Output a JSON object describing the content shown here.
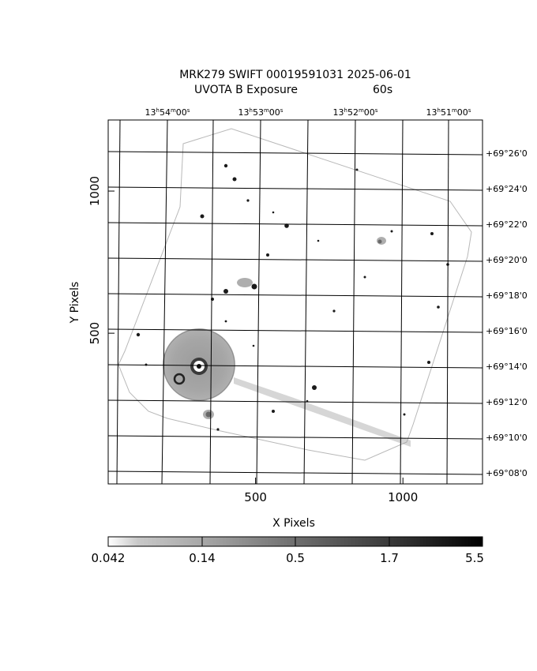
{
  "title": {
    "line1": "MRK279 SWIFT 00019591031 2025-06-01",
    "line2_left": "UVOTA B Exposure",
    "line2_right": "60s"
  },
  "axes": {
    "xlabel": "X Pixels",
    "ylabel": "Y Pixels",
    "x_ticks": [
      {
        "value": 500,
        "label": "500"
      },
      {
        "value": 1000,
        "label": "1000"
      }
    ],
    "y_ticks": [
      {
        "value": 500,
        "label": "500"
      },
      {
        "value": 1000,
        "label": "1000"
      }
    ],
    "xlim": [
      0,
      1270
    ],
    "ylim": [
      -30,
      1250
    ],
    "ra_ticks": [
      {
        "h": "13",
        "m": "54",
        "s": "00"
      },
      {
        "h": "13",
        "m": "53",
        "s": "00"
      },
      {
        "h": "13",
        "m": "52",
        "s": "00"
      },
      {
        "h": "13",
        "m": "51",
        "s": "00"
      }
    ],
    "dec_ticks": [
      "+69°26'0",
      "+69°24'0",
      "+69°22'0",
      "+69°20'0",
      "+69°18'0",
      "+69°16'0",
      "+69°14'0",
      "+69°12'0",
      "+69°10'0",
      "+69°08'0"
    ]
  },
  "colorbar": {
    "labels": [
      "0.042",
      "0.14",
      "0.5",
      "1.7",
      "5.5"
    ],
    "scale": "log"
  },
  "colors": {
    "background": "#ffffff",
    "field": "#a9a9a9",
    "grid": "#000000"
  }
}
